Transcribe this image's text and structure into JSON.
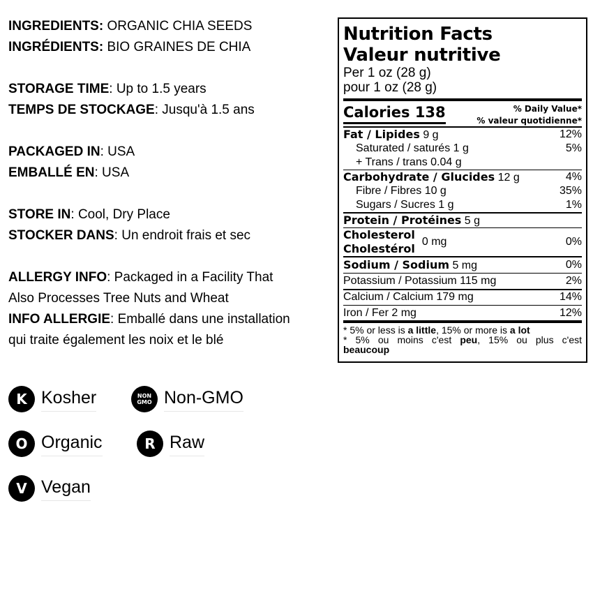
{
  "info": [
    {
      "label": "INGREDIENTS:",
      "value": " ORGANIC CHIA SEEDS"
    },
    {
      "label": "INGRÉDIENTS:",
      "value": " BIO GRAINES DE CHIA"
    },
    {
      "label": "STORAGE TIME",
      "value": ": Up to 1.5 years"
    },
    {
      "label": "TEMPS DE STOCKAGE",
      "value": ": Jusqu'à 1.5 ans"
    },
    {
      "label": "PACKAGED IN",
      "value": ": USA"
    },
    {
      "label": "EMBALLÉ EN",
      "value": ": USA"
    },
    {
      "label": "STORE IN",
      "value": ": Cool, Dry Place"
    },
    {
      "label": "STOCKER DANS",
      "value": ": Un endroit frais et sec"
    },
    {
      "label": "ALLERGY INFO",
      "value": ": Packaged in a Facility That"
    },
    {
      "label": "",
      "value": "Also Processes Tree Nuts and Wheat"
    },
    {
      "label": "INFO ALLERGIE",
      "value": ": Emballé dans une installation"
    },
    {
      "label": "",
      "value": "qui traite également les noix et le blé"
    }
  ],
  "nutrition": {
    "title_en": "Nutrition Facts",
    "title_fr": "Valeur nutritive",
    "per_en": "Per 1 oz (28 g)",
    "per_fr": "pour 1 oz (28 g)",
    "calories_label": "Calories 138",
    "dv_en": "% Daily Value*",
    "dv_fr": "% valeur quotidienne*",
    "fat": {
      "name": "Fat / Lipides",
      "amount": " 9 g",
      "dv": "12%"
    },
    "saturated": {
      "name": "Saturated / saturés 1 g",
      "dv": "5%"
    },
    "trans": {
      "name": "+ Trans / trans 0.04 g"
    },
    "carb": {
      "name": "Carbohydrate / Glucides",
      "amount": " 12 g",
      "dv": "4%"
    },
    "fibre": {
      "name": "Fibre / Fibres 10 g",
      "dv": "35%"
    },
    "sugars": {
      "name": "Sugars / Sucres 1 g",
      "dv": "1%"
    },
    "protein": {
      "name": "Protein / Protéines",
      "amount": " 5 g"
    },
    "cholesterol": {
      "name_en": "Cholesterol",
      "name_fr": "Cholestérol",
      "amount": "0 mg",
      "dv": "0%"
    },
    "sodium": {
      "name": "Sodium / Sodium",
      "amount": " 5 mg",
      "dv": "0%"
    },
    "potassium": {
      "name": "Potassium / Potassium 115 mg",
      "dv": "2%"
    },
    "calcium": {
      "name": "Calcium / Calcium 179 mg",
      "dv": "14%"
    },
    "iron": {
      "name": "Iron / Fer 2 mg",
      "dv": "12%"
    },
    "foot1": {
      "a": "* 5% or less is ",
      "b": "a little",
      "c": ", 15% or more is ",
      "d": "a lot"
    },
    "foot2": {
      "a": "* 5% ou moins c'est ",
      "b": "peu",
      "c": ", 15% ou plus c'est ",
      "d": "beaucoup"
    }
  },
  "badges": [
    {
      "glyph": "K",
      "label": "Kosher",
      "icon": "kosher-icon"
    },
    {
      "glyph": "NON GMO",
      "label": "Non-GMO",
      "icon": "non-gmo-icon"
    },
    {
      "glyph": "O",
      "label": "Organic",
      "icon": "organic-icon"
    },
    {
      "glyph": "R",
      "label": "Raw",
      "icon": "raw-icon"
    },
    {
      "glyph": "V",
      "label": "Vegan",
      "icon": "vegan-icon"
    }
  ]
}
